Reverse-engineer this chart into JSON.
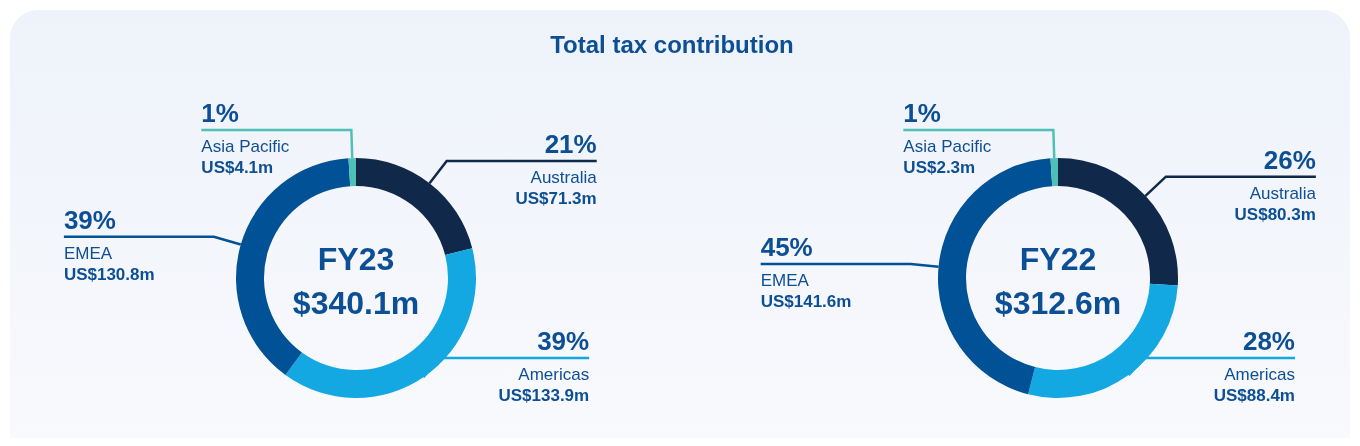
{
  "chart_data": [
    {
      "type": "donut",
      "title": "Total tax contribution",
      "subtitle": "FY23",
      "categories": [
        "Australia",
        "Americas",
        "EMEA",
        "Asia Pacific"
      ],
      "values": [
        21,
        39,
        39,
        1
      ],
      "colors": [
        "#10284a",
        "#13a8e2",
        "#005195",
        "#4fc0b5"
      ],
      "value_labels": [
        "21%",
        "39%",
        "39%",
        "1%"
      ],
      "annotations": [
        "$340.1m",
        {
          "text": "US$71.3m",
          "x": "Australia"
        },
        {
          "text": "US$133.9m",
          "x": "Americas"
        },
        {
          "text": "US$130.8m",
          "x": "EMEA"
        },
        {
          "text": "US$4.1m",
          "x": "Asia Pacific"
        }
      ]
    },
    {
      "type": "donut",
      "subtitle": "FY22",
      "categories": [
        "Australia",
        "Americas",
        "EMEA",
        "Asia Pacific"
      ],
      "values": [
        26,
        28,
        45,
        1
      ],
      "colors": [
        "#10284a",
        "#13a8e2",
        "#005195",
        "#4fc0b5"
      ],
      "value_labels": [
        "26%",
        "28%",
        "45%",
        "1%"
      ],
      "annotations": [
        "$312.6m",
        {
          "text": "US$80.3m",
          "x": "Australia"
        },
        {
          "text": "US$88.4m",
          "x": "Americas"
        },
        {
          "text": "US$141.6m",
          "x": "EMEA"
        },
        {
          "text": "US$2.3m",
          "x": "Asia Pacific"
        }
      ]
    }
  ]
}
